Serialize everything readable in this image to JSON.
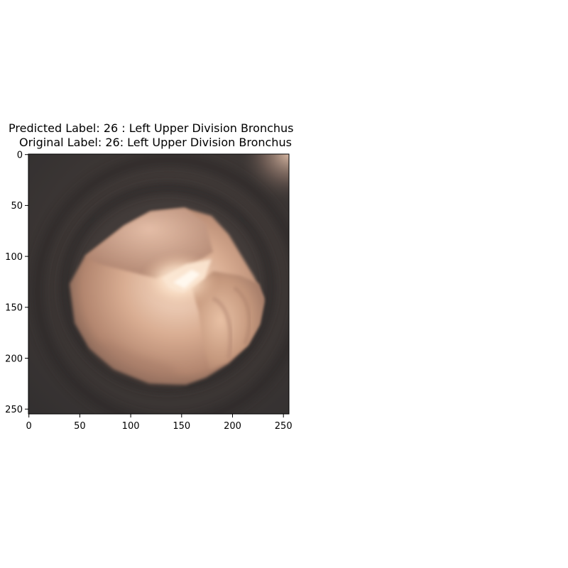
{
  "figure": {
    "title_line1": "Predicted Label: 26 : Left Upper Division Bronchus",
    "title_line2": "Original Label: 26: Left Upper Division Bronchus",
    "image_subject": "bronchoscopy-frame",
    "x_ticks": [
      "0",
      "50",
      "100",
      "150",
      "200",
      "250"
    ],
    "y_ticks": [
      "0",
      "50",
      "100",
      "150",
      "200",
      "250"
    ],
    "colors": {
      "background": "#3a3533",
      "tissue_light": "#f7e2d2",
      "tissue_mid": "#c79b84",
      "tissue_dark": "#6e5347",
      "highlight": "#fff6e8"
    }
  }
}
